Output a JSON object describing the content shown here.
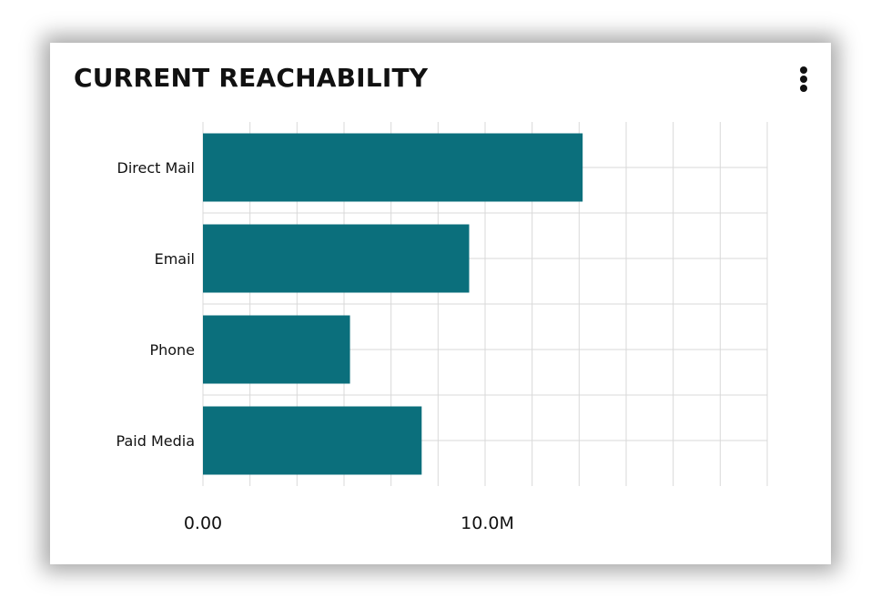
{
  "card": {
    "title": "CURRENT REACHABILITY",
    "menu_icon": "more-vertical-icon"
  },
  "chart_data": {
    "type": "bar",
    "orientation": "horizontal",
    "title": "CURRENT REACHABILITY",
    "xlabel": "",
    "ylabel": "",
    "categories": [
      "Direct Mail",
      "Email",
      "Phone",
      "Paid Media"
    ],
    "values": [
      13350000,
      9360000,
      5170000,
      7690000
    ],
    "xlim": [
      0,
      19840000
    ],
    "x_ticks": [
      0,
      10000000
    ],
    "x_tick_labels": [
      "0.00",
      "10.0M"
    ],
    "grid": true,
    "legend": "none",
    "bar_color": "#0b6f7c",
    "grid_color": "#d9d9d9"
  }
}
